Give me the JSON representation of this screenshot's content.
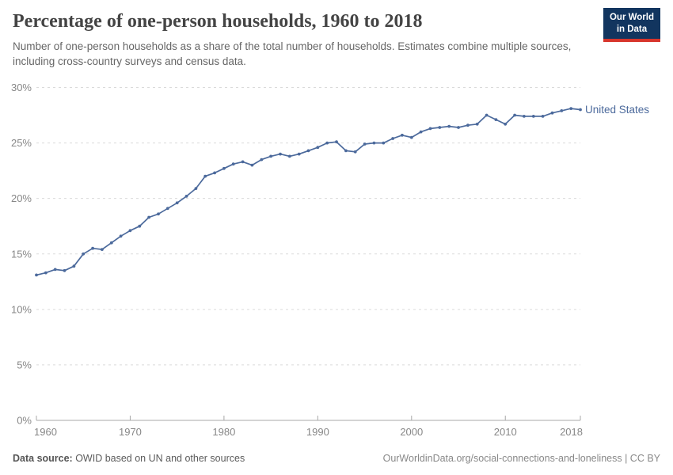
{
  "header": {
    "title": "Percentage of one-person households, 1960 to 2018",
    "subtitle": "Number of one-person households as a share of the total number of households. Estimates combine multiple sources, including cross-country surveys and census data.",
    "logo": {
      "line1": "Our World",
      "line2": "in Data"
    }
  },
  "chart_data": {
    "type": "line",
    "title": "Percentage of one-person households, 1960 to 2018",
    "entity": "United States",
    "x_start": 1960,
    "x_end": 2018,
    "x": [
      1960,
      1961,
      1962,
      1963,
      1964,
      1965,
      1966,
      1967,
      1968,
      1969,
      1970,
      1971,
      1972,
      1973,
      1974,
      1975,
      1976,
      1977,
      1978,
      1979,
      1980,
      1981,
      1982,
      1983,
      1984,
      1985,
      1986,
      1987,
      1988,
      1989,
      1990,
      1991,
      1992,
      1993,
      1994,
      1995,
      1996,
      1997,
      1998,
      1999,
      2000,
      2001,
      2002,
      2003,
      2004,
      2005,
      2006,
      2007,
      2008,
      2009,
      2010,
      2011,
      2012,
      2013,
      2014,
      2015,
      2016,
      2017,
      2018
    ],
    "values": [
      13.1,
      13.3,
      13.6,
      13.5,
      13.9,
      15.0,
      15.5,
      15.4,
      16.0,
      16.6,
      17.1,
      17.5,
      18.3,
      18.6,
      19.1,
      19.6,
      20.2,
      20.9,
      22.0,
      22.3,
      22.7,
      23.1,
      23.3,
      23.0,
      23.5,
      23.8,
      24.0,
      23.8,
      24.0,
      24.3,
      24.6,
      25.0,
      25.1,
      24.3,
      24.2,
      24.9,
      25.0,
      25.0,
      25.4,
      25.7,
      25.5,
      26.0,
      26.3,
      26.4,
      26.5,
      26.4,
      26.6,
      26.7,
      27.5,
      27.1,
      26.7,
      27.5,
      27.4,
      27.4,
      27.4,
      27.7,
      27.9,
      28.1,
      28.0
    ],
    "ylim": [
      0,
      30
    ],
    "y_ticks": [
      0,
      5,
      10,
      15,
      20,
      25,
      30
    ],
    "y_tick_suffix": "%",
    "x_ticks": [
      1960,
      1970,
      1980,
      1990,
      2000,
      2010,
      2018
    ],
    "xlabel": "",
    "ylabel": "",
    "grid": "horizontal-dashed",
    "legend_position": "end-of-line-label",
    "line_color": "#4C6A9C",
    "tick_label_color": "#878787",
    "gridline_color": "#dadada",
    "axis_color": "#a8a8a8"
  },
  "footer": {
    "source_label": "Data source:",
    "source_text": " OWID based on UN and other sources",
    "rights": "OurWorldinData.org/social-connections-and-loneliness | CC BY"
  }
}
